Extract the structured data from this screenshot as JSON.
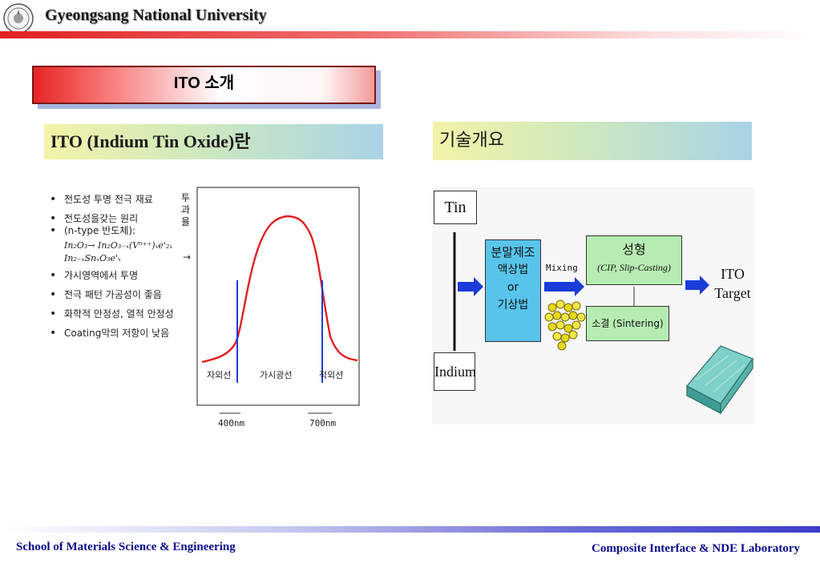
{
  "header": {
    "title": "Gyeongsang National University"
  },
  "slide": {
    "title": "ITO 소개"
  },
  "left_panel": {
    "heading": "ITO (Indium Tin Oxide)란",
    "bullets": [
      "전도성 투명 전극 재료",
      "전도성을갖는 원리",
      "(n-type 반도체):",
      "가시영역에서 투명",
      "전극 패턴 가공성이 좋음",
      "화학적 안정성, 열적 안정성",
      "Coating막의 저항이 낮음"
    ],
    "equation_1": "In₂O₃→ In₂O₃₋ₓ(V⁰⁺⁺)ₓe'₂ₓ",
    "equation_2": "In₂₋ₓSnₓO₃e'ₓ"
  },
  "plot": {
    "ylabel": "투과율",
    "arrow": "→",
    "uv_label": "자외선",
    "visible_label": "가시광선",
    "ir_label": "적외선",
    "x_tick_1": "400nm",
    "x_tick_2": "700nm"
  },
  "right_panel": {
    "heading": "기술개요",
    "tin": "Tin",
    "indium": "Indium",
    "powder_title": "분말제조",
    "powder_method_1": "액상법",
    "powder_or": "or",
    "powder_method_2": "기상법",
    "mixing": "Mixing",
    "forming_title": "성형",
    "forming_detail": "(CIP, Slip-Casting)",
    "sintering": "소결 (Sintering)",
    "target_1": "ITO",
    "target_2": "Target"
  },
  "footer": {
    "left": "School of Materials Science & Engineering",
    "right": "Composite Interface & NDE Laboratory"
  },
  "colors": {
    "header_bar": "#e02020",
    "footer_bar": "#3c3ccc",
    "powder_box": "#58c4ec",
    "process_box": "#b6ecb2",
    "arrow_blue": "#1a3cd8",
    "curve_red": "#e02020"
  }
}
